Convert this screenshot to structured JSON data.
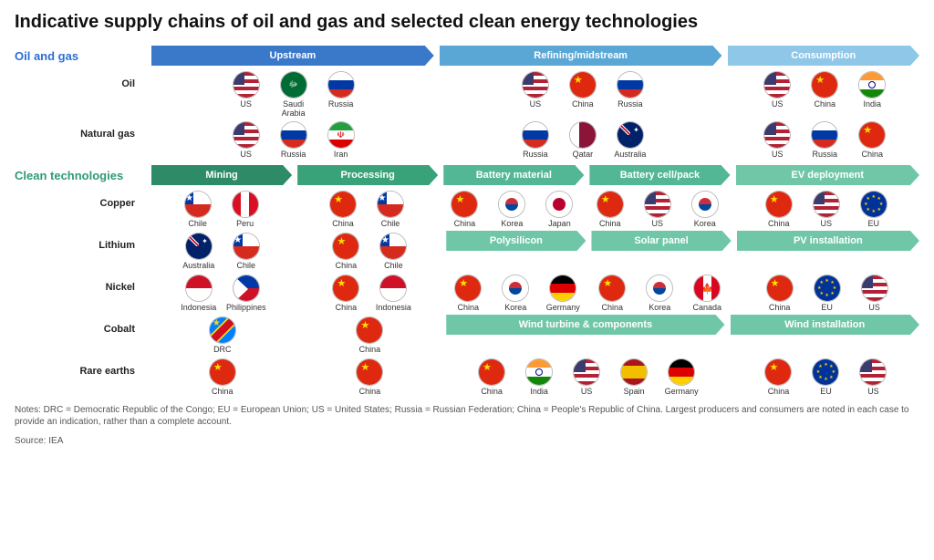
{
  "title": "Indicative supply chains of oil and gas and selected clean energy technologies",
  "colors": {
    "oilgas_label": "#2a6fd6",
    "clean_label": "#2e9b78",
    "upstream": "#3a78c9",
    "refining": "#5aa7d6",
    "consumption": "#8fc7e8",
    "mining": "#2e8b68",
    "processing": "#3aa278",
    "batmat": "#53b694",
    "batcell": "#53b694",
    "deploy": "#6fc7a8",
    "subheader": "#6fc7a8"
  },
  "sections": {
    "oilgas": {
      "label": "Oil and gas"
    },
    "clean": {
      "label": "Clean technologies"
    }
  },
  "oilgas_headers": [
    {
      "text": "Upstream",
      "colorKey": "upstream",
      "flex": 3
    },
    {
      "text": "Refining/midstream",
      "colorKey": "refining",
      "flex": 3
    },
    {
      "text": "Consumption",
      "colorKey": "consumption",
      "flex": 2
    }
  ],
  "clean_headers_top": [
    {
      "text": "Mining",
      "colorKey": "mining",
      "flex": 1.5
    },
    {
      "text": "Processing",
      "colorKey": "processing",
      "flex": 1.5
    },
    {
      "text": "Battery material",
      "colorKey": "batmat",
      "flex": 1.5
    },
    {
      "text": "Battery cell/pack",
      "colorKey": "batcell",
      "flex": 1.5
    },
    {
      "text": "EV deployment",
      "colorKey": "deploy",
      "flex": 2
    }
  ],
  "clean_headers_mid": [
    {
      "text": "Polysilicon",
      "colorKey": "subheader",
      "flex": 1.5
    },
    {
      "text": "Solar panel",
      "colorKey": "subheader",
      "flex": 1.5
    },
    {
      "text": "PV installation",
      "colorKey": "deploy",
      "flex": 2
    }
  ],
  "clean_headers_wind": [
    {
      "text": "Wind turbine & components",
      "colorKey": "subheader",
      "flex": 3
    },
    {
      "text": "Wind installation",
      "colorKey": "deploy",
      "flex": 2
    }
  ],
  "rows_oilgas": [
    {
      "label": "Oil",
      "stages": [
        {
          "flex": 3,
          "flags": [
            "US",
            "SaudiArabia",
            "Russia"
          ]
        },
        {
          "flex": 3,
          "flags": [
            "US",
            "China",
            "Russia"
          ]
        },
        {
          "flex": 2,
          "flags": [
            "US",
            "China",
            "India"
          ]
        }
      ]
    },
    {
      "label": "Natural gas",
      "stages": [
        {
          "flex": 3,
          "flags": [
            "US",
            "Russia",
            "Iran"
          ]
        },
        {
          "flex": 3,
          "flags": [
            "Russia",
            "Qatar",
            "Australia"
          ]
        },
        {
          "flex": 2,
          "flags": [
            "US",
            "Russia",
            "China"
          ]
        }
      ]
    }
  ],
  "rows_clean_top": [
    {
      "label": "Copper",
      "stages": [
        {
          "flex": 1.5,
          "flags": [
            "Chile",
            "Peru"
          ]
        },
        {
          "flex": 1.5,
          "flags": [
            "China",
            "Chile"
          ]
        },
        {
          "flex": 1.5,
          "flags": [
            "China",
            "Korea",
            "Japan"
          ]
        },
        {
          "flex": 1.5,
          "flags": [
            "China",
            "US",
            "Korea"
          ]
        },
        {
          "flex": 2,
          "flags": [
            "China",
            "US",
            "EU"
          ]
        }
      ]
    }
  ],
  "rows_clean_li": {
    "label": "Lithium",
    "mining": [
      "Australia",
      "Chile"
    ],
    "processing": [
      "China",
      "Chile"
    ]
  },
  "rows_clean_ni": {
    "label": "Nickel",
    "mining": [
      "Indonesia",
      "Philippines"
    ],
    "processing": [
      "China",
      "Indonesia"
    ]
  },
  "rows_clean_co": {
    "label": "Cobalt",
    "mining": [
      "DRC"
    ],
    "processing": [
      "China"
    ]
  },
  "rows_clean_re": {
    "label": "Rare earths",
    "mining": [
      "China"
    ],
    "processing": [
      "China"
    ]
  },
  "solar_row": {
    "poly": [
      "China",
      "Korea",
      "Germany"
    ],
    "panel": [
      "China",
      "Korea",
      "Canada"
    ],
    "install": [
      "China",
      "EU",
      "US"
    ]
  },
  "wind_row": {
    "turbine": [
      "China",
      "India",
      "US",
      "Spain",
      "Germany"
    ],
    "install": [
      "China",
      "EU",
      "US"
    ]
  },
  "flag_labels": {
    "US": "US",
    "SaudiArabia": "Saudi Arabia",
    "Russia": "Russia",
    "China": "China",
    "India": "India",
    "Iran": "Iran",
    "Qatar": "Qatar",
    "Australia": "Australia",
    "Chile": "Chile",
    "Peru": "Peru",
    "Korea": "Korea",
    "Japan": "Japan",
    "EU": "EU",
    "Indonesia": "Indonesia",
    "Philippines": "Philippines",
    "DRC": "DRC",
    "Germany": "Germany",
    "Canada": "Canada",
    "Spain": "Spain"
  },
  "footnote": "Notes: DRC = Democratic Republic of the Congo; EU = European Union; US = United States; Russia = Russian Federation; China = People's Republic of China. Largest producers and consumers are noted in each case to provide an indication, rather than a complete account.",
  "source": "Source: IEA"
}
